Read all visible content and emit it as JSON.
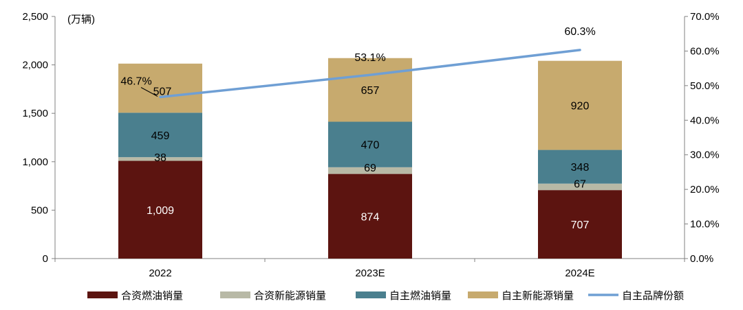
{
  "chart_data": {
    "type": "bar",
    "stacked": true,
    "unit_label": "(万辆)",
    "categories": [
      "2022",
      "2023E",
      "2024E"
    ],
    "series": [
      {
        "name": "合资燃油销量",
        "values": [
          1009,
          874,
          707
        ],
        "color": "#5c1410",
        "label_color": "#ffffff"
      },
      {
        "name": "合资新能源销量",
        "values": [
          38,
          69,
          67
        ],
        "color": "#b8b9a6",
        "label_color": "#000000"
      },
      {
        "name": "自主燃油销量",
        "values": [
          459,
          470,
          348
        ],
        "color": "#4a7f8e",
        "label_color": "#000000"
      },
      {
        "name": "自主新能源销量",
        "values": [
          507,
          657,
          920
        ],
        "color": "#c7aa6e",
        "label_color": "#000000"
      }
    ],
    "line_series": {
      "name": "自主品牌份额",
      "values": [
        46.7,
        53.1,
        60.3
      ],
      "labels": [
        "46.7%",
        "53.1%",
        "60.3%"
      ],
      "color": "#6f9fd4",
      "axis": "right"
    },
    "segment_labels": [
      [
        "1,009",
        "874",
        "707"
      ],
      [
        "38",
        "69",
        "67"
      ],
      [
        "459",
        "470",
        "348"
      ],
      [
        "507",
        "657",
        "920"
      ]
    ],
    "y_left": {
      "ylim": [
        0,
        2500
      ],
      "ticks": [
        "0",
        "500",
        "1,000",
        "1,500",
        "2,000",
        "2,500"
      ]
    },
    "y_right": {
      "ylim": [
        0,
        70
      ],
      "ticks": [
        "0.0%",
        "10.0%",
        "20.0%",
        "30.0%",
        "40.0%",
        "50.0%",
        "60.0%",
        "70.0%"
      ]
    },
    "grid": false,
    "legend_position": "bottom"
  }
}
